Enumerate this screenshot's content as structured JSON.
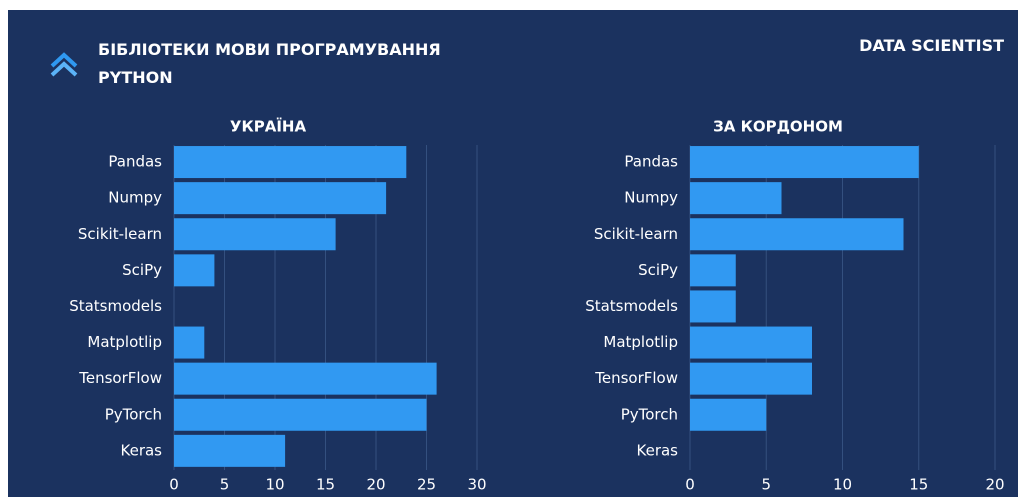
{
  "header": {
    "title": "БІБЛІОТЕКИ МОВИ ПРОГРАМУВАННЯ PYTHON",
    "tag": "DATA SCIENTIST"
  },
  "chart_data": [
    {
      "type": "bar",
      "title": "УКРАЇНА",
      "categories": [
        "Pandas",
        "Numpy",
        "Scikit-learn",
        "SciPy",
        "Statsmodels",
        "Matplotlip",
        "TensorFlow",
        "PyTorch",
        "Keras"
      ],
      "values": [
        23,
        21,
        16,
        4,
        0,
        3,
        26,
        25,
        11
      ],
      "color": "#3199f2",
      "xlim": [
        0,
        30
      ],
      "xticks": [
        0,
        5,
        10,
        15,
        20,
        25,
        30
      ],
      "grid": true
    },
    {
      "type": "bar",
      "title": "ЗА КОРДОНОМ",
      "categories": [
        "Pandas",
        "Numpy",
        "Scikit-learn",
        "SciPy",
        "Statsmodels",
        "Matplotlip",
        "TensorFlow",
        "PyTorch",
        "Keras"
      ],
      "values": [
        15,
        6,
        14,
        3,
        3,
        8,
        8,
        5,
        0
      ],
      "color": "#3199f2",
      "xlim": [
        0,
        20
      ],
      "xticks": [
        0,
        5,
        10,
        15,
        20
      ],
      "grid": true
    }
  ]
}
